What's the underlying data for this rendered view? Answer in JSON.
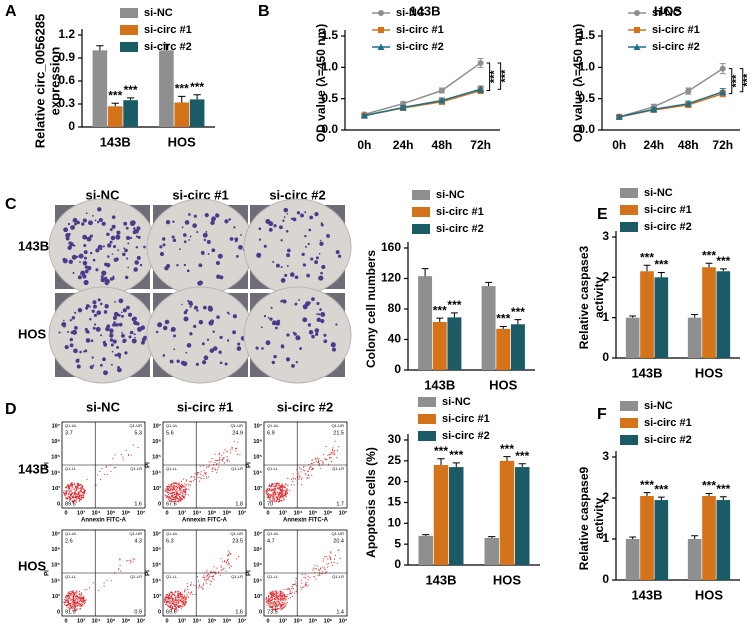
{
  "chart_data": [
    {
      "type": "bar",
      "ylabel": [
        "Relative circ_0056285",
        "expression"
      ],
      "categories": [
        "143B",
        "HOS"
      ],
      "series": [
        {
          "name": "si-NC",
          "color": "#8f8f8f",
          "values": [
            1.0,
            1.0
          ],
          "errors": [
            0.06,
            0.08
          ]
        },
        {
          "name": "si-circ #1",
          "color": "#d4731a",
          "values": [
            0.27,
            0.32
          ],
          "errors": [
            0.04,
            0.08
          ],
          "labels": [
            "***",
            "***"
          ]
        },
        {
          "name": "si-circ #2",
          "color": "#1b5b66",
          "values": [
            0.35,
            0.36
          ],
          "errors": [
            0.03,
            0.06
          ],
          "labels": [
            "***",
            "***"
          ]
        }
      ],
      "ylim": [
        0,
        1.2
      ],
      "yticks": [
        0,
        0.3,
        0.6,
        0.9,
        1.2
      ]
    },
    {
      "type": "line",
      "title": "143B",
      "ylabel": "OD value (λ=450 nm)",
      "categories": [
        "0h",
        "24h",
        "48h",
        "72h"
      ],
      "series": [
        {
          "name": "si-NC",
          "color": "#8f8f8f",
          "marker": "circle",
          "values": [
            0.25,
            0.42,
            0.63,
            1.07
          ],
          "errors": [
            0.02,
            0.03,
            0.04,
            0.07
          ]
        },
        {
          "name": "si-circ #1",
          "color": "#d4731a",
          "marker": "square",
          "values": [
            0.23,
            0.35,
            0.45,
            0.63
          ],
          "errors": [
            0.02,
            0.03,
            0.04,
            0.05
          ]
        },
        {
          "name": "si-circ #2",
          "color": "#1f6e8c",
          "marker": "triangle",
          "values": [
            0.23,
            0.36,
            0.47,
            0.65
          ],
          "errors": [
            0.02,
            0.03,
            0.04,
            0.05
          ]
        }
      ],
      "significance": [
        "***",
        "***"
      ],
      "ylim": [
        0,
        1.5
      ],
      "yticks": [
        {
          "value": 0,
          "label": "0.0"
        },
        0.5,
        {
          "value": 1,
          "label": "1.0"
        },
        1.5
      ]
    },
    {
      "type": "line",
      "title": "HOS",
      "ylabel": "OD value (λ=450 nm)",
      "categories": [
        "0h",
        "24h",
        "48h",
        "72h"
      ],
      "series": [
        {
          "name": "si-NC",
          "color": "#8f8f8f",
          "marker": "circle",
          "values": [
            0.21,
            0.37,
            0.62,
            0.98
          ],
          "errors": [
            0.02,
            0.04,
            0.05,
            0.08
          ]
        },
        {
          "name": "si-circ #1",
          "color": "#d4731a",
          "marker": "square",
          "values": [
            0.21,
            0.32,
            0.4,
            0.58
          ],
          "errors": [
            0.02,
            0.03,
            0.04,
            0.05
          ]
        },
        {
          "name": "si-circ #2",
          "color": "#1f6e8c",
          "marker": "triangle",
          "values": [
            0.21,
            0.33,
            0.42,
            0.61
          ],
          "errors": [
            0.02,
            0.03,
            0.04,
            0.05
          ]
        }
      ],
      "significance": [
        "***",
        "***"
      ],
      "ylim": [
        0,
        1.5
      ],
      "yticks": [
        {
          "value": 0,
          "label": "0.0"
        },
        0.5,
        {
          "value": 1,
          "label": "1.0"
        },
        1.5
      ]
    },
    {
      "type": "bar",
      "ylabel": "Colony cell numbers",
      "categories": [
        "143B",
        "HOS"
      ],
      "series": [
        {
          "name": "si-NC",
          "color": "#8f8f8f",
          "values": [
            123,
            110
          ],
          "errors": [
            10,
            5
          ]
        },
        {
          "name": "si-circ #1",
          "color": "#d4731a",
          "values": [
            63,
            54
          ],
          "errors": [
            5,
            3
          ],
          "labels": [
            "***",
            "***"
          ]
        },
        {
          "name": "si-circ #2",
          "color": "#1b5b66",
          "values": [
            69,
            60
          ],
          "errors": [
            6,
            6
          ],
          "labels": [
            "***",
            "***"
          ]
        }
      ],
      "ylim": [
        0,
        160
      ],
      "yticks": [
        0,
        40,
        80,
        120,
        160
      ]
    },
    {
      "type": "bar",
      "ylabel": "Apoptosis cells (%)",
      "categories": [
        "143B",
        "HOS"
      ],
      "series": [
        {
          "name": "si-NC",
          "color": "#8f8f8f",
          "values": [
            7,
            6.5
          ],
          "errors": [
            0.3,
            0.3
          ]
        },
        {
          "name": "si-circ #1",
          "color": "#d4731a",
          "values": [
            24,
            25
          ],
          "errors": [
            1.5,
            1
          ]
        },
        {
          "name": "si-circ #2",
          "color": "#1b5b66",
          "values": [
            23.5,
            23.5
          ],
          "errors": [
            1,
            0.8
          ]
        }
      ],
      "labels_all": null,
      "ylim": [
        0,
        30
      ],
      "yticks": [
        0,
        5,
        10,
        15,
        20,
        25,
        30
      ]
    },
    {
      "type": "bar",
      "ylabel": [
        "Relative caspase3",
        "activity"
      ],
      "categories": [
        "143B",
        "HOS"
      ],
      "series": [
        {
          "name": "si-NC",
          "color": "#8f8f8f",
          "values": [
            1.0,
            1.0
          ],
          "errors": [
            0.04,
            0.08
          ]
        },
        {
          "name": "si-circ #1",
          "color": "#d4731a",
          "values": [
            2.15,
            2.25
          ],
          "errors": [
            0.15,
            0.1
          ],
          "labels": [
            "***",
            "***"
          ]
        },
        {
          "name": "si-circ #2",
          "color": "#1b5b66",
          "values": [
            2.0,
            2.15
          ],
          "errors": [
            0.12,
            0.06
          ],
          "labels": [
            "***",
            "***"
          ]
        }
      ],
      "ylim": [
        0,
        3
      ],
      "yticks": [
        0,
        1,
        2,
        3
      ]
    },
    {
      "type": "bar",
      "ylabel": [
        "Relative caspase9",
        "activity"
      ],
      "categories": [
        "143B",
        "HOS"
      ],
      "series": [
        {
          "name": "si-NC",
          "color": "#8f8f8f",
          "values": [
            1.0,
            1.0
          ],
          "errors": [
            0.05,
            0.08
          ]
        },
        {
          "name": "si-circ #1",
          "color": "#d4731a",
          "values": [
            2.05,
            2.05
          ],
          "errors": [
            0.08,
            0.06
          ],
          "labels": [
            "***",
            "***"
          ]
        },
        {
          "name": "si-circ #2",
          "color": "#1b5b66",
          "values": [
            1.95,
            1.95
          ],
          "errors": [
            0.07,
            0.08
          ],
          "labels": [
            "***",
            "***"
          ]
        }
      ],
      "ylim": [
        0,
        3
      ],
      "yticks": [
        0,
        1,
        2,
        3
      ]
    }
  ],
  "figure": {
    "panels": [
      "A",
      "B",
      "C",
      "D",
      "E",
      "F"
    ],
    "columns": [
      "si-NC",
      "si-circ #1",
      "si-circ #2"
    ],
    "rows": [
      "143B",
      "HOS"
    ],
    "flow_x_label": "Annexin FITC-A",
    "flow_y_label": "PI",
    "flow_ticks": [
      "0",
      "10³",
      "10⁴",
      "10⁵",
      "10⁶",
      "10⁷"
    ],
    "quadrants": [
      "Q1-UL",
      "Q1-UR",
      "Q1-LL",
      "Q1-LR"
    ],
    "flow": [
      [
        [
          3.7,
          5.3,
          89.6,
          1.6
        ],
        [
          5.6,
          24.9,
          67.6,
          1.8
        ],
        [
          6.9,
          21.5,
          70,
          1.7
        ]
      ],
      [
        [
          2.6,
          4.3,
          91.9,
          0.9
        ],
        [
          6.3,
          23.5,
          69.6,
          1.6
        ],
        [
          4.7,
          20.4,
          73.5,
          1.4
        ]
      ]
    ],
    "apoptosis_labels": [
      [
        "***",
        "***"
      ],
      [
        "***",
        "***"
      ]
    ]
  }
}
